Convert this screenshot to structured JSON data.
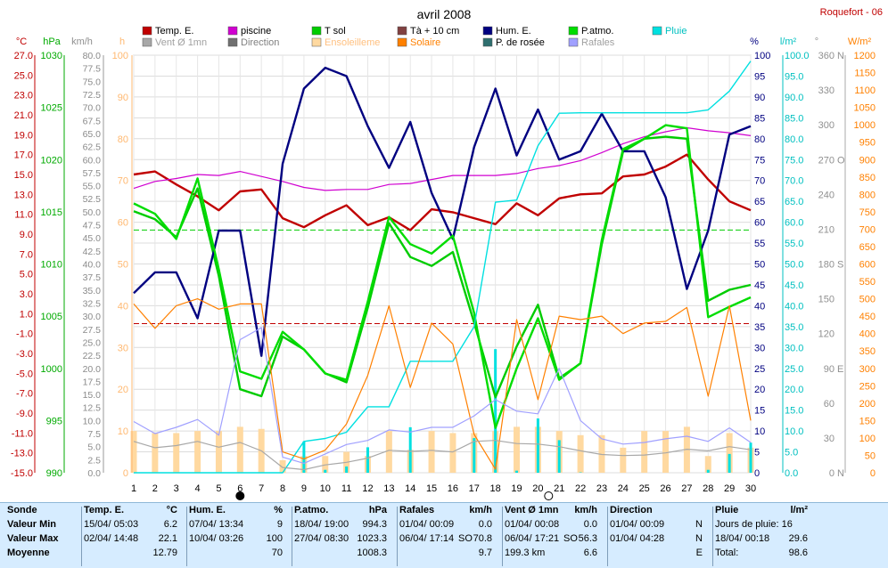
{
  "title": "avril 2008",
  "station": "Roquefort - 06",
  "legend": [
    {
      "label": "Temp. E.",
      "color": "#c00000",
      "col": 0,
      "row": 0
    },
    {
      "label": "Vent Ø 1mn",
      "color": "#a8a8a8",
      "col": 0,
      "row": 1,
      "text_color": "#a0a0a0"
    },
    {
      "label": "piscine",
      "color": "#d000d0",
      "col": 1,
      "row": 0
    },
    {
      "label": "Direction",
      "color": "#707070",
      "col": 1,
      "row": 1,
      "text_color": "#808080"
    },
    {
      "label": "T sol",
      "color": "#00cc00",
      "col": 2,
      "row": 0
    },
    {
      "label": "Ensoleilleme",
      "color": "#ffd9a0",
      "col": 2,
      "row": 1,
      "text_color": "#ffc080"
    },
    {
      "label": "Tà + 10 cm",
      "color": "#804040",
      "col": 3,
      "row": 0
    },
    {
      "label": "Solaire",
      "color": "#ff8000",
      "col": 3,
      "row": 1,
      "text_color": "#ff8000"
    },
    {
      "label": "Hum. E.",
      "color": "#000080",
      "col": 4,
      "row": 0
    },
    {
      "label": "P. de rosée",
      "color": "#2f6f6f",
      "col": 4,
      "row": 1
    },
    {
      "label": "P.atmo.",
      "color": "#00dd00",
      "col": 5,
      "row": 0
    },
    {
      "label": "Rafales",
      "color": "#a0a0ff",
      "col": 5,
      "row": 1,
      "text_color": "#a0a0a0"
    },
    {
      "label": "Pluie",
      "color": "#00e0e0",
      "col": 6,
      "row": 0,
      "text_color": "#00c0c0"
    }
  ],
  "axes_units": {
    "celsius": "°C",
    "hpa": "hPa",
    "kmh": "km/h",
    "hours": "h",
    "percent": "%",
    "lm2": "l/m²",
    "degrees": "°",
    "wm2": "W/m²"
  },
  "axes_ticks": {
    "celsius": [
      "27.0",
      "25.0",
      "23.0",
      "21.0",
      "19.0",
      "17.0",
      "15.0",
      "13.0",
      "11.0",
      "9.0",
      "7.0",
      "5.0",
      "3.0",
      "1.0",
      "-1.0",
      "-3.0",
      "-5.0",
      "-7.0",
      "-9.0",
      "-11.0",
      "-13.0",
      "-15.0"
    ],
    "hpa": [
      "1030",
      "1025",
      "1020",
      "1015",
      "1010",
      "1005",
      "1000",
      "995",
      "990"
    ],
    "kmh": [
      "80.0",
      "77.5",
      "75.0",
      "72.5",
      "70.0",
      "67.5",
      "65.0",
      "62.5",
      "60.0",
      "57.5",
      "55.0",
      "52.5",
      "50.0",
      "47.5",
      "45.0",
      "42.5",
      "40.0",
      "37.5",
      "35.0",
      "32.5",
      "30.0",
      "27.5",
      "25.0",
      "22.5",
      "20.0",
      "17.5",
      "15.0",
      "12.5",
      "10.0",
      "7.5",
      "5.0",
      "2.5",
      "0.0"
    ],
    "hours": [
      "100",
      "90",
      "80",
      "70",
      "60",
      "50",
      "40",
      "30",
      "20",
      "10",
      "0"
    ],
    "percent": [
      "100",
      "95",
      "90",
      "85",
      "80",
      "75",
      "70",
      "65",
      "60",
      "55",
      "50",
      "45",
      "40",
      "35",
      "30",
      "25",
      "20",
      "15",
      "10",
      "5",
      "0"
    ],
    "lm2": [
      "100.0",
      "95.0",
      "90.0",
      "85.0",
      "80.0",
      "75.0",
      "70.0",
      "65.0",
      "60.0",
      "55.0",
      "50.0",
      "45.0",
      "40.0",
      "35.0",
      "30.0",
      "25.0",
      "20.0",
      "15.0",
      "10.0",
      "5.0",
      "0.0"
    ],
    "degrees": [
      {
        "v": "360",
        "d": "N"
      },
      {
        "v": "330",
        "d": ""
      },
      {
        "v": "300",
        "d": ""
      },
      {
        "v": "270",
        "d": "O"
      },
      {
        "v": "240",
        "d": ""
      },
      {
        "v": "210",
        "d": ""
      },
      {
        "v": "180",
        "d": "S"
      },
      {
        "v": "150",
        "d": ""
      },
      {
        "v": "120",
        "d": ""
      },
      {
        "v": "90",
        "d": "E"
      },
      {
        "v": "60",
        "d": ""
      },
      {
        "v": "30",
        "d": ""
      },
      {
        "v": "0",
        "d": "N"
      }
    ],
    "wm2": [
      "1200",
      "1150",
      "1100",
      "1050",
      "1000",
      "950",
      "900",
      "850",
      "800",
      "750",
      "700",
      "650",
      "600",
      "550",
      "500",
      "450",
      "400",
      "350",
      "300",
      "250",
      "200",
      "150",
      "100",
      "50",
      "0"
    ]
  },
  "chart_data": {
    "type": "line",
    "x": [
      1,
      2,
      3,
      4,
      5,
      6,
      7,
      8,
      9,
      10,
      11,
      12,
      13,
      14,
      15,
      16,
      17,
      18,
      19,
      20,
      21,
      22,
      23,
      24,
      25,
      26,
      27,
      28,
      29,
      30
    ],
    "moon_phases": [
      {
        "day": 6,
        "phase": "new"
      },
      {
        "day": 20.5,
        "phase": "full"
      }
    ],
    "grid": true,
    "reference_lines": [
      {
        "axis": "celsius",
        "value": 0,
        "color": "#c00000",
        "style": "dashed"
      },
      {
        "axis": "hpa",
        "value": 1013.25,
        "color": "#00cc00",
        "style": "dashed"
      }
    ],
    "series": [
      {
        "name": "Temp. E.",
        "axis": "celsius",
        "color": "#c00000",
        "values": [
          15.0,
          15.3,
          14.0,
          12.8,
          11.4,
          13.3,
          13.5,
          10.6,
          9.7,
          10.9,
          11.9,
          9.9,
          10.7,
          9.4,
          11.5,
          11.2,
          10.6,
          10.0,
          12.1,
          10.9,
          12.6,
          13.0,
          13.1,
          14.8,
          15.0,
          15.8,
          17.0,
          14.5,
          12.3,
          11.4
        ]
      },
      {
        "name": "piscine",
        "axis": "celsius",
        "color": "#d000d0",
        "values": [
          13.6,
          14.3,
          14.6,
          15.0,
          14.9,
          15.3,
          14.8,
          14.3,
          13.7,
          13.4,
          13.5,
          13.5,
          14.0,
          14.1,
          14.5,
          14.9,
          14.9,
          14.9,
          15.1,
          15.6,
          15.9,
          16.4,
          17.2,
          18.1,
          18.8,
          19.3,
          19.7,
          19.4,
          19.2,
          18.9
        ]
      },
      {
        "name": "T sol",
        "axis": "celsius",
        "color": "#00cc00",
        "values": [
          11.3,
          10.5,
          8.7,
          13.6,
          4.8,
          -6.6,
          -7.3,
          -1.3,
          -2.6,
          -5.0,
          -5.9,
          1.6,
          10.1,
          6.7,
          5.8,
          7.2,
          0.1,
          -7.4,
          -2.3,
          1.9,
          -5.5,
          -4.0,
          8.0,
          17.3,
          18.6,
          18.8,
          18.6,
          2.3,
          3.4,
          3.9
        ]
      },
      {
        "name": "Hum. E.",
        "axis": "percent",
        "color": "#000080",
        "values": [
          43,
          48,
          48,
          37,
          58,
          58,
          28,
          74,
          92,
          97,
          95,
          83,
          73,
          84,
          67,
          56,
          78,
          92,
          76,
          87,
          75,
          77,
          86,
          77,
          77,
          66,
          44,
          58,
          81,
          83
        ]
      },
      {
        "name": "P.atmo.",
        "axis": "hpa",
        "color": "#00dd00",
        "values": [
          1015.8,
          1014.8,
          1012.4,
          1018.2,
          1009.5,
          999.7,
          999.0,
          1003.5,
          1001.8,
          999.5,
          998.9,
          1006.4,
          1014.5,
          1011.9,
          1011.0,
          1012.7,
          1005.3,
          994.3,
          1000.0,
          1004.8,
          998.9,
          1000.5,
          1012.3,
          1021.0,
          1022.0,
          1023.3,
          1023.0,
          1004.9,
          1005.9,
          1006.8
        ]
      },
      {
        "name": "Pluie",
        "axis": "lm2",
        "color": "#00e0e0",
        "values": [
          0,
          0,
          0,
          0,
          0,
          0,
          0,
          0,
          7.5,
          8.2,
          9.7,
          15.8,
          15.8,
          26.7,
          26.7,
          26.7,
          35.0,
          64.8,
          65.3,
          78.3,
          86.1,
          86.2,
          86.2,
          86.2,
          86.2,
          86.2,
          86.2,
          86.9,
          91.4,
          98.6
        ]
      },
      {
        "name": "Solaire",
        "axis": "wm2",
        "color": "#ff8000",
        "values": [
          485,
          415,
          480,
          500,
          470,
          485,
          485,
          60,
          40,
          65,
          140,
          280,
          480,
          245,
          430,
          370,
          110,
          10,
          440,
          210,
          450,
          440,
          450,
          400,
          430,
          435,
          475,
          220,
          480,
          150
        ]
      },
      {
        "name": "Rafales",
        "axis": "kmh",
        "color": "#a0a0ff",
        "values": [
          9.8,
          7.5,
          8.7,
          10.2,
          7.2,
          25.5,
          27.8,
          3.0,
          1.8,
          3.6,
          5.4,
          6.2,
          8.2,
          7.8,
          8.7,
          8.7,
          10.9,
          14.0,
          11.8,
          11.3,
          20.0,
          10.0,
          6.5,
          5.5,
          5.8,
          6.5,
          7.0,
          6.0,
          8.6,
          5.8
        ]
      },
      {
        "name": "Vent Ø 1mn",
        "axis": "kmh",
        "color": "#a8a8a8",
        "values": [
          6.0,
          4.8,
          5.2,
          6.0,
          4.9,
          5.8,
          4.2,
          1.0,
          0.6,
          1.5,
          2.0,
          2.8,
          4.3,
          4.1,
          4.3,
          4.0,
          6.0,
          6.2,
          5.6,
          5.5,
          5.0,
          4.2,
          3.5,
          3.3,
          3.4,
          3.8,
          4.5,
          4.2,
          5.0,
          4.4
        ]
      },
      {
        "name": "Ensoleilleme",
        "axis": "hours",
        "type": "bar",
        "color": "#ffd9a0",
        "values": [
          10,
          9.5,
          9.5,
          10,
          10,
          11,
          10.5,
          3,
          4,
          4,
          5,
          4,
          10,
          5.5,
          10,
          9.5,
          9.5,
          10,
          11,
          11,
          10,
          9,
          9,
          6,
          10,
          10,
          11,
          4,
          9.5,
          6
        ]
      },
      {
        "name": "Pluie jour",
        "axis": "lm2",
        "type": "bar",
        "color": "#00e0e0",
        "values": [
          0,
          0,
          0,
          0,
          0,
          0,
          0,
          0,
          7.5,
          0.7,
          1.5,
          6.1,
          0,
          10.9,
          0,
          0,
          8.3,
          29.6,
          0.5,
          13.0,
          7.8,
          0.1,
          0,
          0,
          0,
          0,
          0,
          0.7,
          4.5,
          7.2
        ]
      }
    ]
  },
  "summary": {
    "sonde": {
      "title": "Sonde",
      "rows": [
        "Valeur Min",
        "Valeur Max",
        "Moyenne"
      ]
    },
    "temp": {
      "title": "Temp. E.",
      "unit": "°C",
      "min_date": "15/04/  05:03",
      "min_val": "6.2",
      "max_date": "02/04/  14:48",
      "max_val": "22.1",
      "avg_val": "12.79"
    },
    "hum": {
      "title": "Hum. E.",
      "unit": "%",
      "min_date": "07/04/  13:34",
      "min_val": "9",
      "max_date": "10/04/  03:26",
      "max_val": "100",
      "avg_val": "70"
    },
    "patmo": {
      "title": "P.atmo.",
      "unit": "hPa",
      "min_date": "18/04/  19:00",
      "min_val": "994.3",
      "max_date": "27/04/  08:30",
      "max_val": "1023.3",
      "avg_val": "1008.3"
    },
    "rafales": {
      "title": "Rafales",
      "unit": "km/h",
      "min_date": "01/04/  00:09",
      "min_val": "0.0",
      "max_date": "06/04/  17:14",
      "max_dir": "SO",
      "max_val": "70.8",
      "avg_val": "9.7"
    },
    "vent": {
      "title": "Vent Ø 1mn",
      "unit": "km/h",
      "min_date": "01/04/  00:08",
      "min_val": "0.0",
      "max_date": "06/04/  17:21",
      "max_dir": "SO",
      "max_val": "56.3",
      "avg_left": "199.3 km",
      "avg_val": "6.6"
    },
    "direction": {
      "title": "Direction",
      "min_date": "01/04/  00:09",
      "min_val": "N",
      "max_date": "01/04/  04:28",
      "max_val": "N",
      "avg_val": "E"
    },
    "pluie": {
      "title": "Pluie",
      "unit": "l/m²",
      "row1": "Jours de pluie: 16",
      "row2_date": "18/04/  00:18",
      "row2_val": "29.6",
      "row3": "Total:",
      "row3_val": "98.6"
    }
  }
}
